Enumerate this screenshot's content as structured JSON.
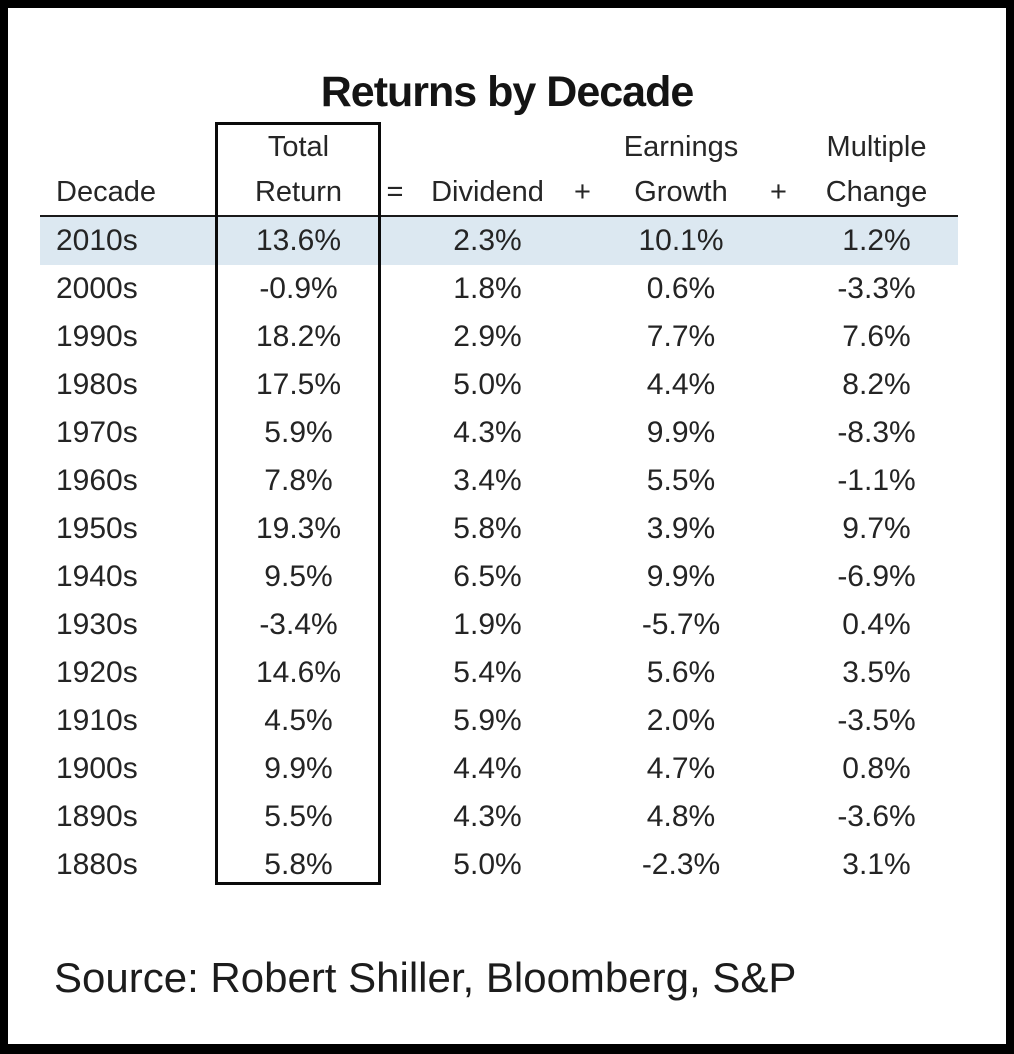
{
  "title": "Returns by Decade",
  "source": "Source: Robert Shiller, Bloomberg, S&P",
  "colors": {
    "frame_border": "#000000",
    "panel_background": "#ffffff",
    "highlight_row": "#dce8f1",
    "text": "#242424"
  },
  "table": {
    "header": {
      "decade": "Decade",
      "total_line1": "Total",
      "total_line2": "Return",
      "equals": "=",
      "dividend": "Dividend",
      "plus1": "+",
      "earnings_line1": "Earnings",
      "earnings_line2": "Growth",
      "plus2": "+",
      "multiple_line1": "Multiple",
      "multiple_line2": "Change"
    },
    "rows": [
      {
        "decade": "2010s",
        "total_return": "13.6%",
        "dividend": "2.3%",
        "earnings_growth": "10.1%",
        "multiple_change": "1.2%",
        "highlighted": true
      },
      {
        "decade": "2000s",
        "total_return": "-0.9%",
        "dividend": "1.8%",
        "earnings_growth": "0.6%",
        "multiple_change": "-3.3%",
        "highlighted": false
      },
      {
        "decade": "1990s",
        "total_return": "18.2%",
        "dividend": "2.9%",
        "earnings_growth": "7.7%",
        "multiple_change": "7.6%",
        "highlighted": false
      },
      {
        "decade": "1980s",
        "total_return": "17.5%",
        "dividend": "5.0%",
        "earnings_growth": "4.4%",
        "multiple_change": "8.2%",
        "highlighted": false
      },
      {
        "decade": "1970s",
        "total_return": "5.9%",
        "dividend": "4.3%",
        "earnings_growth": "9.9%",
        "multiple_change": "-8.3%",
        "highlighted": false
      },
      {
        "decade": "1960s",
        "total_return": "7.8%",
        "dividend": "3.4%",
        "earnings_growth": "5.5%",
        "multiple_change": "-1.1%",
        "highlighted": false
      },
      {
        "decade": "1950s",
        "total_return": "19.3%",
        "dividend": "5.8%",
        "earnings_growth": "3.9%",
        "multiple_change": "9.7%",
        "highlighted": false
      },
      {
        "decade": "1940s",
        "total_return": "9.5%",
        "dividend": "6.5%",
        "earnings_growth": "9.9%",
        "multiple_change": "-6.9%",
        "highlighted": false
      },
      {
        "decade": "1930s",
        "total_return": "-3.4%",
        "dividend": "1.9%",
        "earnings_growth": "-5.7%",
        "multiple_change": "0.4%",
        "highlighted": false
      },
      {
        "decade": "1920s",
        "total_return": "14.6%",
        "dividend": "5.4%",
        "earnings_growth": "5.6%",
        "multiple_change": "3.5%",
        "highlighted": false
      },
      {
        "decade": "1910s",
        "total_return": "4.5%",
        "dividend": "5.9%",
        "earnings_growth": "2.0%",
        "multiple_change": "-3.5%",
        "highlighted": false
      },
      {
        "decade": "1900s",
        "total_return": "9.9%",
        "dividend": "4.4%",
        "earnings_growth": "4.7%",
        "multiple_change": "0.8%",
        "highlighted": false
      },
      {
        "decade": "1890s",
        "total_return": "5.5%",
        "dividend": "4.3%",
        "earnings_growth": "4.8%",
        "multiple_change": "-3.6%",
        "highlighted": false
      },
      {
        "decade": "1880s",
        "total_return": "5.8%",
        "dividend": "5.0%",
        "earnings_growth": "-2.3%",
        "multiple_change": "3.1%",
        "highlighted": false
      }
    ]
  },
  "chart_data": {
    "type": "table",
    "title": "Returns by Decade",
    "columns": [
      "Decade",
      "Total Return",
      "Dividend",
      "Earnings Growth",
      "Multiple Change"
    ],
    "units": "percent",
    "relationship": "Total Return = Dividend + Earnings Growth + Multiple Change",
    "rows": [
      [
        "2010s",
        13.6,
        2.3,
        10.1,
        1.2
      ],
      [
        "2000s",
        -0.9,
        1.8,
        0.6,
        -3.3
      ],
      [
        "1990s",
        18.2,
        2.9,
        7.7,
        7.6
      ],
      [
        "1980s",
        17.5,
        5.0,
        4.4,
        8.2
      ],
      [
        "1970s",
        5.9,
        4.3,
        9.9,
        -8.3
      ],
      [
        "1960s",
        7.8,
        3.4,
        5.5,
        -1.1
      ],
      [
        "1950s",
        19.3,
        5.8,
        3.9,
        9.7
      ],
      [
        "1940s",
        9.5,
        6.5,
        9.9,
        -6.9
      ],
      [
        "1930s",
        -3.4,
        1.9,
        -5.7,
        0.4
      ],
      [
        "1920s",
        14.6,
        5.4,
        5.6,
        3.5
      ],
      [
        "1910s",
        4.5,
        5.9,
        2.0,
        -3.5
      ],
      [
        "1900s",
        9.9,
        4.4,
        4.7,
        0.8
      ],
      [
        "1890s",
        5.5,
        4.3,
        4.8,
        -3.6
      ],
      [
        "1880s",
        5.8,
        5.0,
        -2.3,
        3.1
      ]
    ],
    "highlighted_row": "2010s",
    "source": "Source: Robert Shiller, Bloomberg, S&P"
  }
}
